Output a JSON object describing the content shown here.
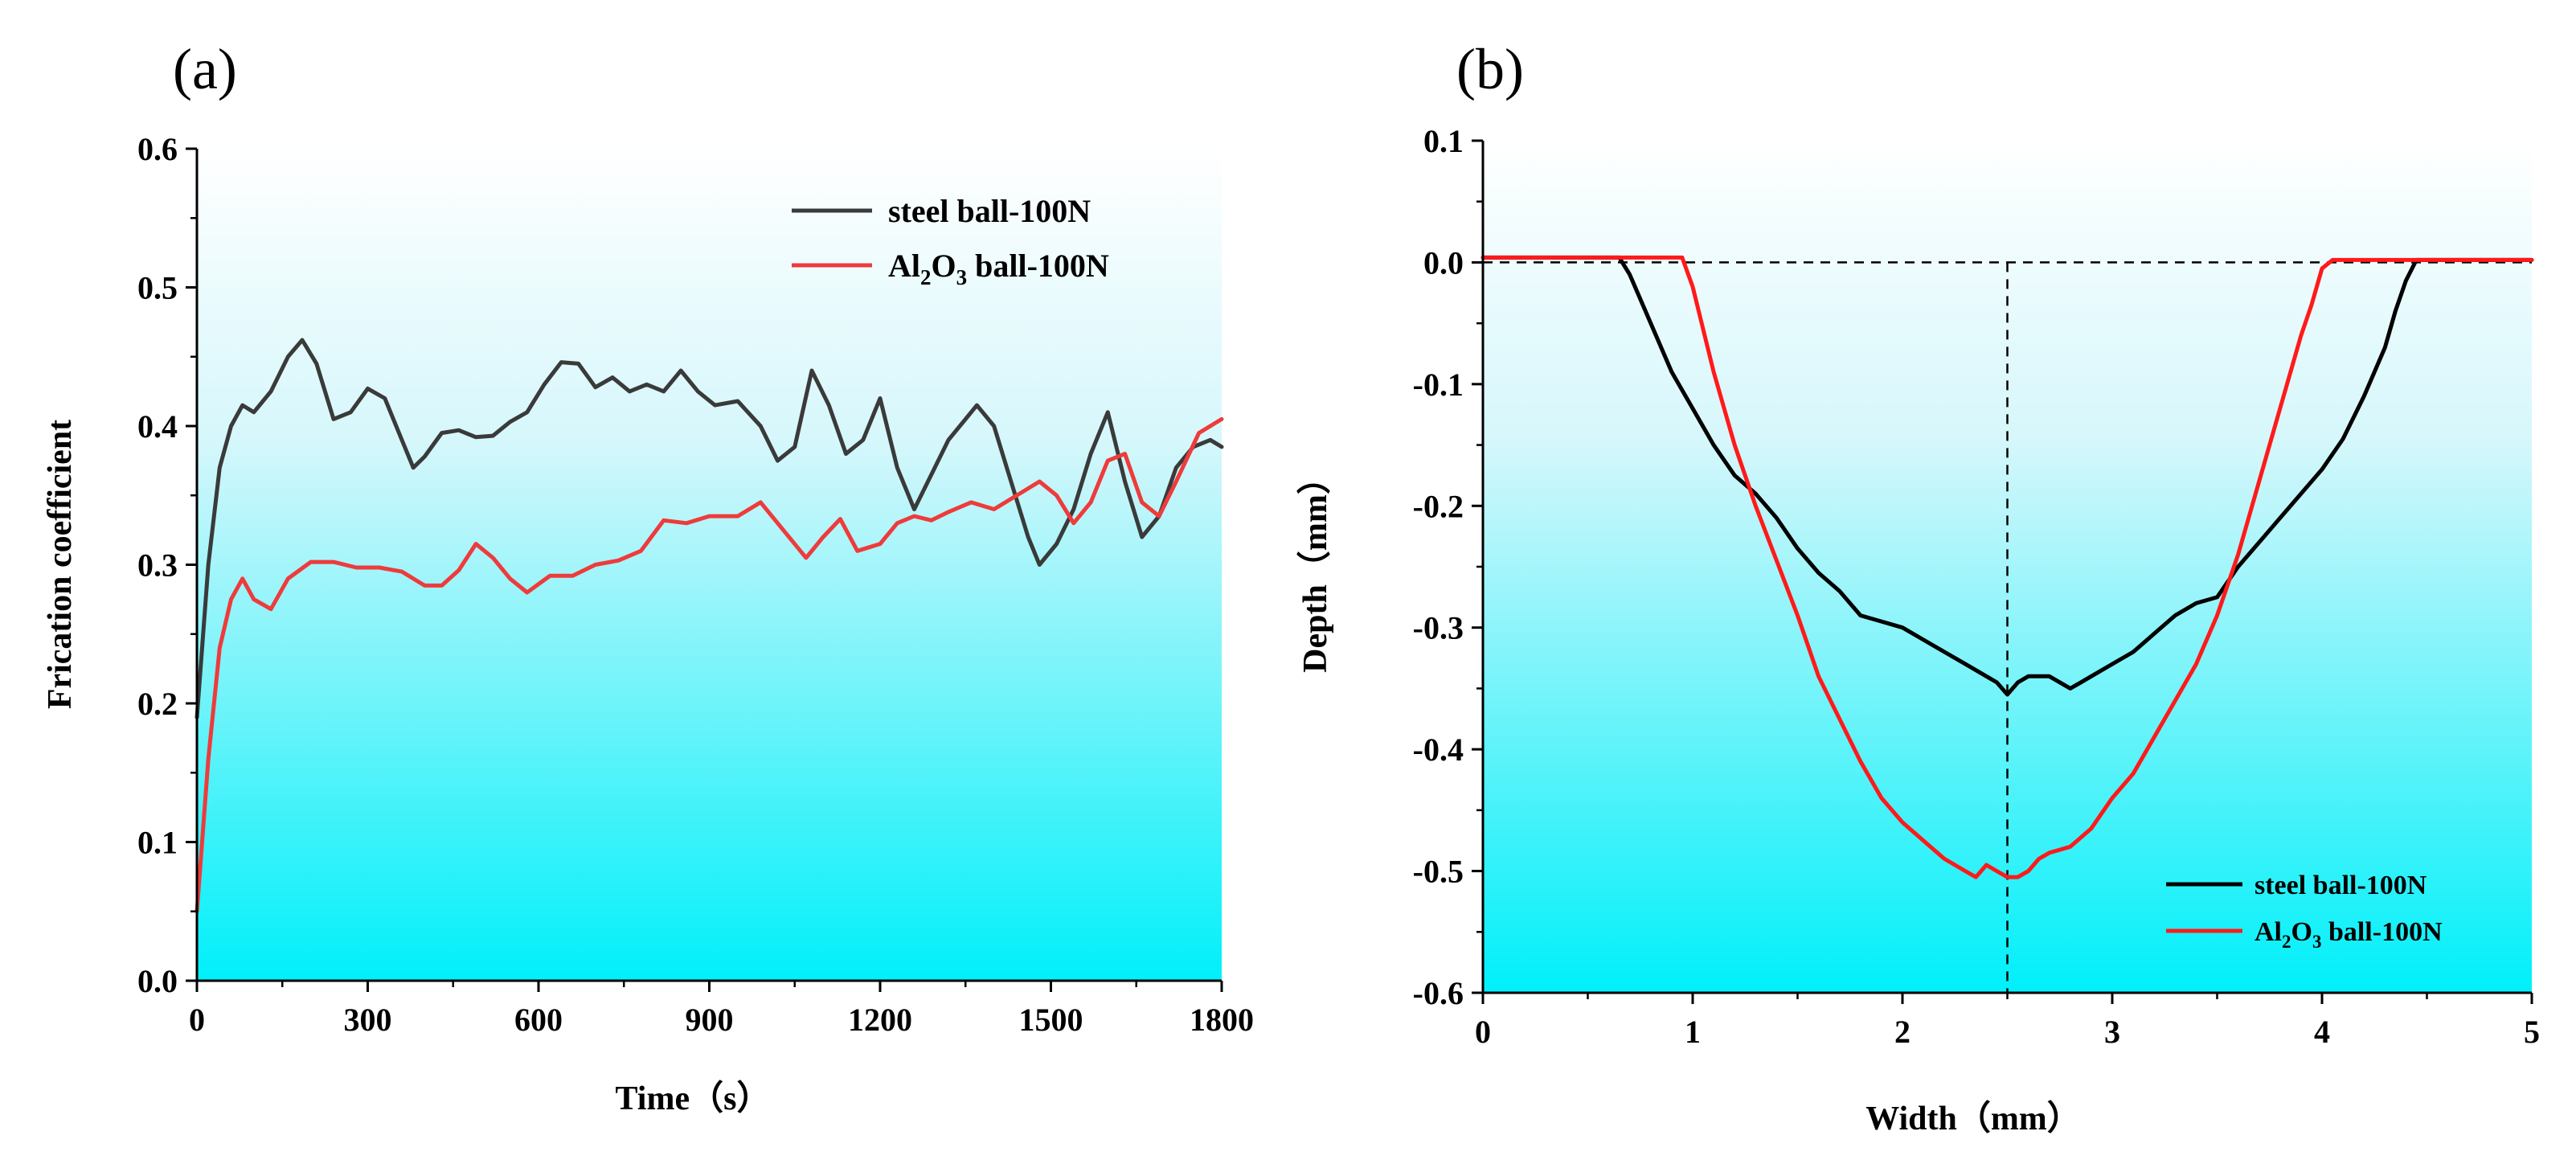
{
  "chart_data": [
    {
      "type": "line",
      "panel_label": "(a)",
      "xlabel": "Time（s）",
      "ylabel": "Frication coefficient",
      "xlim": [
        0,
        1800
      ],
      "ylim": [
        0,
        0.6
      ],
      "x_ticks": [
        "0",
        "300",
        "600",
        "900",
        "1200",
        "1500",
        "1800"
      ],
      "y_ticks": [
        "0.0",
        "0.1",
        "0.2",
        "0.3",
        "0.4",
        "0.5",
        "0.6"
      ],
      "legend_position": "top-right",
      "background": "gradient-cyan",
      "series": [
        {
          "name": "steel ball-100N",
          "legend_parts": [
            "steel ball-100N"
          ],
          "color": "#3a3a3a",
          "x": [
            0,
            20,
            40,
            60,
            80,
            100,
            130,
            160,
            185,
            210,
            240,
            270,
            300,
            330,
            360,
            380,
            400,
            430,
            460,
            490,
            520,
            550,
            580,
            610,
            640,
            670,
            700,
            730,
            760,
            790,
            820,
            850,
            880,
            910,
            950,
            990,
            1020,
            1050,
            1080,
            1110,
            1140,
            1170,
            1200,
            1230,
            1260,
            1290,
            1320,
            1350,
            1370,
            1400,
            1430,
            1460,
            1480,
            1510,
            1540,
            1570,
            1600,
            1630,
            1660,
            1690,
            1720,
            1750,
            1780,
            1800
          ],
          "y": [
            0.19,
            0.3,
            0.37,
            0.4,
            0.415,
            0.41,
            0.425,
            0.45,
            0.462,
            0.445,
            0.405,
            0.41,
            0.427,
            0.42,
            0.39,
            0.37,
            0.378,
            0.395,
            0.397,
            0.392,
            0.393,
            0.403,
            0.41,
            0.43,
            0.446,
            0.445,
            0.428,
            0.435,
            0.425,
            0.43,
            0.425,
            0.44,
            0.425,
            0.415,
            0.418,
            0.4,
            0.375,
            0.385,
            0.44,
            0.415,
            0.38,
            0.39,
            0.42,
            0.37,
            0.34,
            0.365,
            0.39,
            0.405,
            0.415,
            0.4,
            0.36,
            0.32,
            0.3,
            0.315,
            0.34,
            0.38,
            0.41,
            0.36,
            0.32,
            0.335,
            0.37,
            0.385,
            0.39,
            0.385
          ]
        },
        {
          "name": "Al2O3 ball-100N",
          "legend_parts": [
            "Al",
            "2",
            "O",
            "3",
            " ball-100N"
          ],
          "color": "#ee3b3b",
          "x": [
            0,
            20,
            40,
            60,
            80,
            100,
            130,
            160,
            200,
            240,
            280,
            320,
            360,
            400,
            430,
            460,
            490,
            520,
            550,
            580,
            620,
            660,
            700,
            740,
            780,
            820,
            860,
            900,
            950,
            990,
            1030,
            1070,
            1100,
            1130,
            1160,
            1200,
            1230,
            1260,
            1290,
            1320,
            1360,
            1400,
            1440,
            1480,
            1510,
            1540,
            1570,
            1600,
            1630,
            1660,
            1690,
            1720,
            1760,
            1800
          ],
          "y": [
            0.05,
            0.16,
            0.24,
            0.275,
            0.29,
            0.275,
            0.268,
            0.29,
            0.302,
            0.302,
            0.298,
            0.298,
            0.295,
            0.285,
            0.285,
            0.296,
            0.315,
            0.305,
            0.29,
            0.28,
            0.292,
            0.292,
            0.3,
            0.303,
            0.31,
            0.332,
            0.33,
            0.335,
            0.335,
            0.345,
            0.325,
            0.305,
            0.32,
            0.333,
            0.31,
            0.315,
            0.33,
            0.335,
            0.332,
            0.338,
            0.345,
            0.34,
            0.35,
            0.36,
            0.35,
            0.33,
            0.345,
            0.375,
            0.38,
            0.345,
            0.335,
            0.36,
            0.395,
            0.405
          ]
        }
      ]
    },
    {
      "type": "line",
      "panel_label": "(b)",
      "xlabel": "Width（mm）",
      "ylabel": "Depth（mm）",
      "xlim": [
        0,
        5
      ],
      "ylim": [
        -0.6,
        0.1
      ],
      "x_ticks": [
        "0",
        "1",
        "2",
        "3",
        "4",
        "5"
      ],
      "y_ticks": [
        "0.1",
        "0.0",
        "-0.1",
        "-0.2",
        "-0.3",
        "-0.4",
        "-0.5",
        "-0.6"
      ],
      "legend_position": "bottom-right",
      "background": "gradient-cyan",
      "reference_lines": {
        "horizontal_y": 0.0,
        "vertical_x": 2.5
      },
      "series": [
        {
          "name": "steel ball-100N",
          "legend_parts": [
            "steel ball-100N"
          ],
          "color": "#000000",
          "x": [
            0,
            0.65,
            0.7,
            0.8,
            0.9,
            1.0,
            1.1,
            1.2,
            1.3,
            1.4,
            1.5,
            1.6,
            1.7,
            1.8,
            1.9,
            2.0,
            2.1,
            2.2,
            2.3,
            2.4,
            2.45,
            2.5,
            2.55,
            2.6,
            2.7,
            2.8,
            2.85,
            2.9,
            3.0,
            3.1,
            3.2,
            3.3,
            3.4,
            3.5,
            3.6,
            3.7,
            3.8,
            3.9,
            4.0,
            4.1,
            4.2,
            4.3,
            4.35,
            4.4,
            4.45,
            5.0
          ],
          "y": [
            0.004,
            0.004,
            -0.01,
            -0.05,
            -0.09,
            -0.12,
            -0.15,
            -0.175,
            -0.19,
            -0.21,
            -0.235,
            -0.255,
            -0.27,
            -0.29,
            -0.295,
            -0.3,
            -0.31,
            -0.32,
            -0.33,
            -0.34,
            -0.345,
            -0.355,
            -0.345,
            -0.34,
            -0.34,
            -0.35,
            -0.345,
            -0.34,
            -0.33,
            -0.32,
            -0.305,
            -0.29,
            -0.28,
            -0.275,
            -0.25,
            -0.23,
            -0.21,
            -0.19,
            -0.17,
            -0.145,
            -0.11,
            -0.07,
            -0.04,
            -0.015,
            0.002,
            0.002
          ]
        },
        {
          "name": "Al2O3 ball-100N",
          "legend_parts": [
            "Al",
            "2",
            "O",
            "3",
            " ball-100N"
          ],
          "color": "#ff1a1a",
          "x": [
            0,
            0.95,
            1.0,
            1.1,
            1.2,
            1.3,
            1.4,
            1.5,
            1.6,
            1.7,
            1.8,
            1.9,
            2.0,
            2.1,
            2.2,
            2.3,
            2.35,
            2.4,
            2.45,
            2.5,
            2.55,
            2.6,
            2.65,
            2.7,
            2.8,
            2.9,
            3.0,
            3.1,
            3.2,
            3.3,
            3.4,
            3.5,
            3.6,
            3.7,
            3.8,
            3.9,
            3.95,
            4.0,
            4.05,
            5.0
          ],
          "y": [
            0.004,
            0.004,
            -0.02,
            -0.09,
            -0.15,
            -0.2,
            -0.245,
            -0.29,
            -0.34,
            -0.375,
            -0.41,
            -0.44,
            -0.46,
            -0.475,
            -0.49,
            -0.5,
            -0.505,
            -0.495,
            -0.5,
            -0.505,
            -0.505,
            -0.5,
            -0.49,
            -0.485,
            -0.48,
            -0.465,
            -0.44,
            -0.42,
            -0.39,
            -0.36,
            -0.33,
            -0.29,
            -0.24,
            -0.18,
            -0.12,
            -0.06,
            -0.035,
            -0.005,
            0.002,
            0.002
          ]
        }
      ]
    }
  ]
}
